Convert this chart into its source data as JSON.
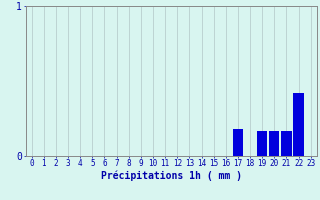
{
  "hours": [
    0,
    1,
    2,
    3,
    4,
    5,
    6,
    7,
    8,
    9,
    10,
    11,
    12,
    13,
    14,
    15,
    16,
    17,
    18,
    19,
    20,
    21,
    22,
    23
  ],
  "values": [
    0,
    0,
    0,
    0,
    0,
    0,
    0,
    0,
    0,
    0,
    0,
    0,
    0,
    0,
    0,
    0,
    0,
    0.18,
    0,
    0.17,
    0.17,
    0.17,
    0.42,
    0
  ],
  "bar_color": "#0000dd",
  "background_color": "#d8f5f0",
  "grid_color": "#b8cece",
  "xlabel": "Précipitations 1h ( mm )",
  "xlabel_color": "#0000aa",
  "xlabel_fontsize": 7,
  "ylim": [
    0,
    1.0
  ],
  "xlim": [
    -0.5,
    23.5
  ],
  "yticks": [
    0,
    1
  ],
  "xticks": [
    0,
    1,
    2,
    3,
    4,
    5,
    6,
    7,
    8,
    9,
    10,
    11,
    12,
    13,
    14,
    15,
    16,
    17,
    18,
    19,
    20,
    21,
    22,
    23
  ],
  "tick_color": "#0000aa",
  "tick_fontsize": 5.5,
  "ytick_fontsize": 7,
  "axis_color": "#888888",
  "figsize": [
    3.2,
    2.0
  ],
  "dpi": 100
}
